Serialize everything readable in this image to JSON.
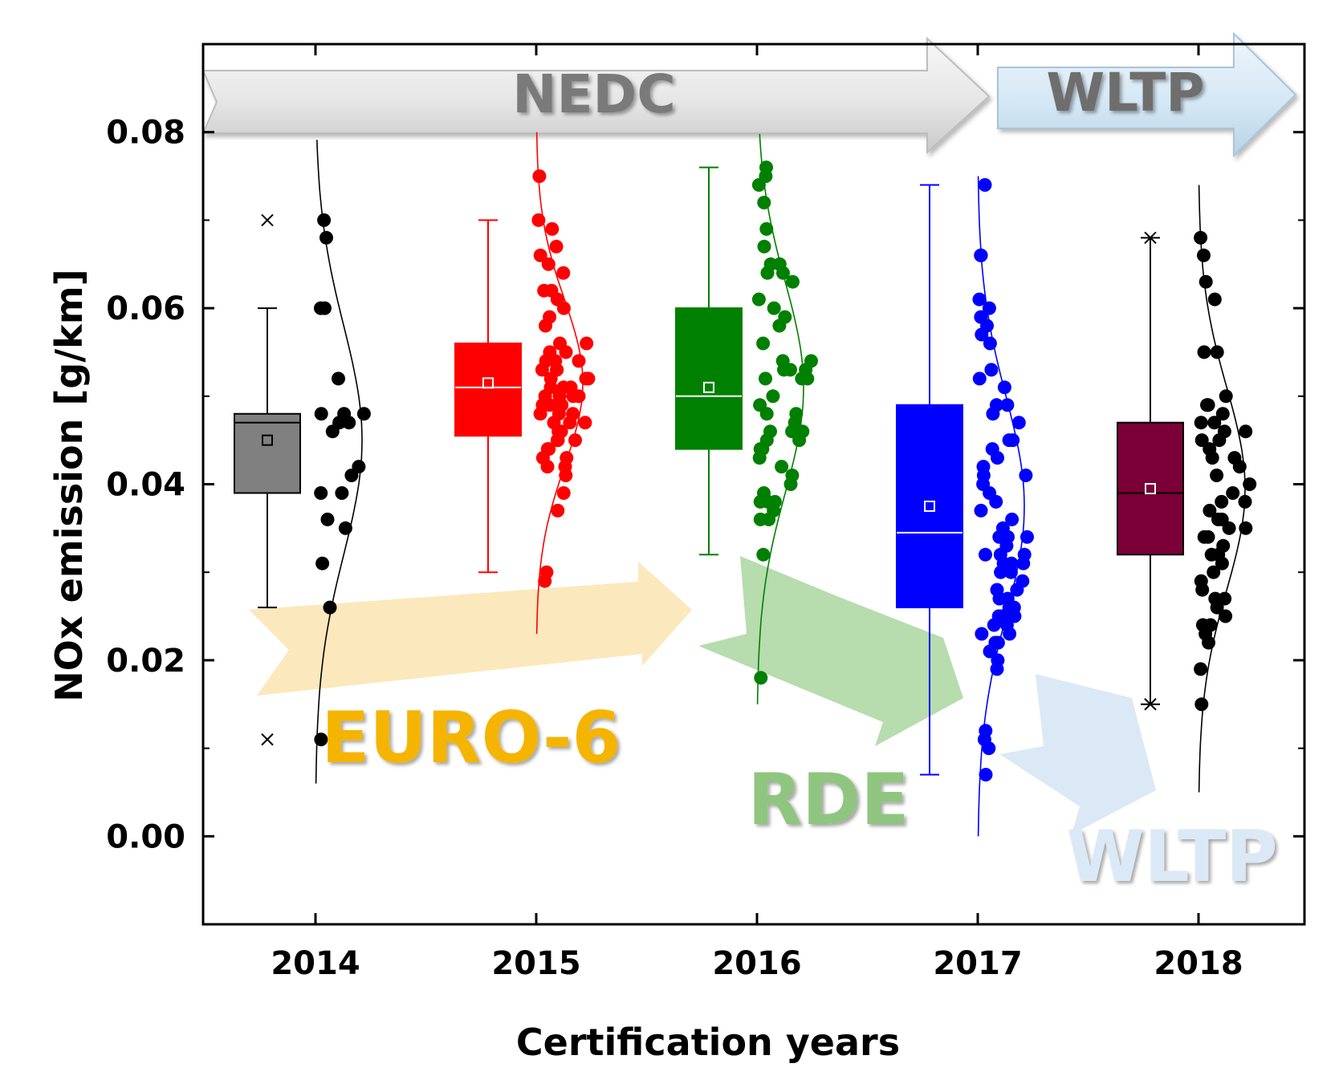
{
  "chart_data": {
    "type": "box",
    "title": "",
    "xlabel": "Certification years",
    "ylabel": "NOx emission [g/km]",
    "ylim": [
      -0.01,
      0.09
    ],
    "yticks": [
      "0.00",
      "0.02",
      "0.04",
      "0.06",
      "0.08"
    ],
    "categories": [
      "2014",
      "2015",
      "2016",
      "2017",
      "2018"
    ],
    "series": [
      {
        "name": "2014",
        "color": "#808080",
        "box": {
          "q1": 0.039,
          "median": 0.047,
          "q3": 0.048,
          "mean": 0.045,
          "whisker_low": 0.026,
          "whisker_high": 0.06,
          "min_marker": 0.011,
          "max_marker": 0.07
        },
        "points": [
          0.07,
          0.068,
          0.06,
          0.06,
          0.052,
          0.048,
          0.048,
          0.048,
          0.047,
          0.047,
          0.046,
          0.042,
          0.041,
          0.039,
          0.039,
          0.036,
          0.035,
          0.031,
          0.026,
          0.011
        ],
        "distribution": {
          "mean": 0.045,
          "sd": 0.013
        }
      },
      {
        "name": "2015",
        "color": "#ff0000",
        "box": {
          "q1": 0.0455,
          "median": 0.051,
          "q3": 0.056,
          "mean": 0.0515,
          "whisker_low": 0.03,
          "whisker_high": 0.07
        },
        "points": [
          0.075,
          0.07,
          0.069,
          0.067,
          0.066,
          0.065,
          0.064,
          0.062,
          0.062,
          0.061,
          0.06,
          0.059,
          0.058,
          0.056,
          0.056,
          0.055,
          0.055,
          0.054,
          0.054,
          0.054,
          0.053,
          0.053,
          0.053,
          0.052,
          0.052,
          0.052,
          0.051,
          0.051,
          0.051,
          0.05,
          0.05,
          0.05,
          0.05,
          0.049,
          0.049,
          0.049,
          0.048,
          0.048,
          0.048,
          0.047,
          0.047,
          0.047,
          0.046,
          0.046,
          0.046,
          0.045,
          0.045,
          0.045,
          0.044,
          0.044,
          0.043,
          0.043,
          0.042,
          0.042,
          0.041,
          0.039,
          0.037,
          0.03,
          0.029
        ],
        "distribution": {
          "mean": 0.0515,
          "sd": 0.0095
        }
      },
      {
        "name": "2016",
        "color": "#008000",
        "box": {
          "q1": 0.044,
          "median": 0.05,
          "q3": 0.06,
          "mean": 0.051,
          "whisker_low": 0.032,
          "whisker_high": 0.076
        },
        "points": [
          0.076,
          0.075,
          0.074,
          0.072,
          0.069,
          0.067,
          0.065,
          0.065,
          0.064,
          0.064,
          0.063,
          0.061,
          0.06,
          0.059,
          0.058,
          0.056,
          0.054,
          0.054,
          0.053,
          0.053,
          0.053,
          0.052,
          0.052,
          0.052,
          0.05,
          0.049,
          0.048,
          0.048,
          0.047,
          0.046,
          0.046,
          0.046,
          0.045,
          0.045,
          0.044,
          0.044,
          0.043,
          0.042,
          0.041,
          0.04,
          0.039,
          0.038,
          0.038,
          0.038,
          0.037,
          0.036,
          0.036,
          0.032,
          0.018
        ],
        "distribution": {
          "mean": 0.051,
          "sd": 0.012
        }
      },
      {
        "name": "2017",
        "color": "#0000ff",
        "box": {
          "q1": 0.026,
          "median": 0.0345,
          "q3": 0.049,
          "mean": 0.0375,
          "whisker_low": 0.007,
          "whisker_high": 0.074
        },
        "points": [
          0.074,
          0.066,
          0.066,
          0.061,
          0.06,
          0.059,
          0.058,
          0.057,
          0.056,
          0.053,
          0.052,
          0.051,
          0.049,
          0.049,
          0.048,
          0.047,
          0.045,
          0.045,
          0.044,
          0.043,
          0.042,
          0.041,
          0.041,
          0.04,
          0.039,
          0.038,
          0.037,
          0.036,
          0.035,
          0.034,
          0.034,
          0.034,
          0.033,
          0.032,
          0.032,
          0.032,
          0.031,
          0.031,
          0.031,
          0.03,
          0.03,
          0.029,
          0.028,
          0.028,
          0.027,
          0.027,
          0.026,
          0.026,
          0.025,
          0.025,
          0.025,
          0.024,
          0.024,
          0.023,
          0.023,
          0.022,
          0.022,
          0.021,
          0.02,
          0.019,
          0.012,
          0.011,
          0.01,
          0.007
        ],
        "distribution": {
          "mean": 0.0375,
          "sd": 0.0125
        }
      },
      {
        "name": "2018",
        "color": "#7a0037",
        "box": {
          "q1": 0.032,
          "median": 0.039,
          "q3": 0.047,
          "mean": 0.0395,
          "whisker_low": 0.015,
          "whisker_high": 0.068,
          "min_marker": 0.015,
          "max_marker": 0.068
        },
        "points": [
          0.068,
          0.066,
          0.063,
          0.061,
          0.055,
          0.055,
          0.05,
          0.049,
          0.049,
          0.048,
          0.047,
          0.047,
          0.046,
          0.046,
          0.045,
          0.045,
          0.044,
          0.043,
          0.043,
          0.042,
          0.041,
          0.04,
          0.039,
          0.038,
          0.038,
          0.037,
          0.036,
          0.036,
          0.035,
          0.035,
          0.034,
          0.034,
          0.033,
          0.032,
          0.032,
          0.031,
          0.03,
          0.029,
          0.028,
          0.027,
          0.027,
          0.026,
          0.025,
          0.024,
          0.024,
          0.023,
          0.022,
          0.019,
          0.015
        ],
        "distribution": {
          "mean": 0.0395,
          "sd": 0.0115
        }
      }
    ],
    "annotations": {
      "top_banner_left": "NEDC",
      "top_banner_right": "WLTP",
      "arrow_euro6": "EURO-6",
      "arrow_rde": "RDE",
      "arrow_wltp": "WLTP"
    },
    "colors": {
      "euro6_arrow": "#fbe8bc",
      "euro6_text": "#f5b400",
      "rde_arrow": "#b7dcae",
      "rde_text": "#8fc57f",
      "wltp_arrow": "#dbe9f6",
      "wltp_text": "#dbe9f6",
      "nedc_banner": "#ececec",
      "nedc_text": "#7a7a7a",
      "wltp_banner": "#dbeaf5",
      "wltp_banner_text": "#6e6e6e"
    }
  }
}
